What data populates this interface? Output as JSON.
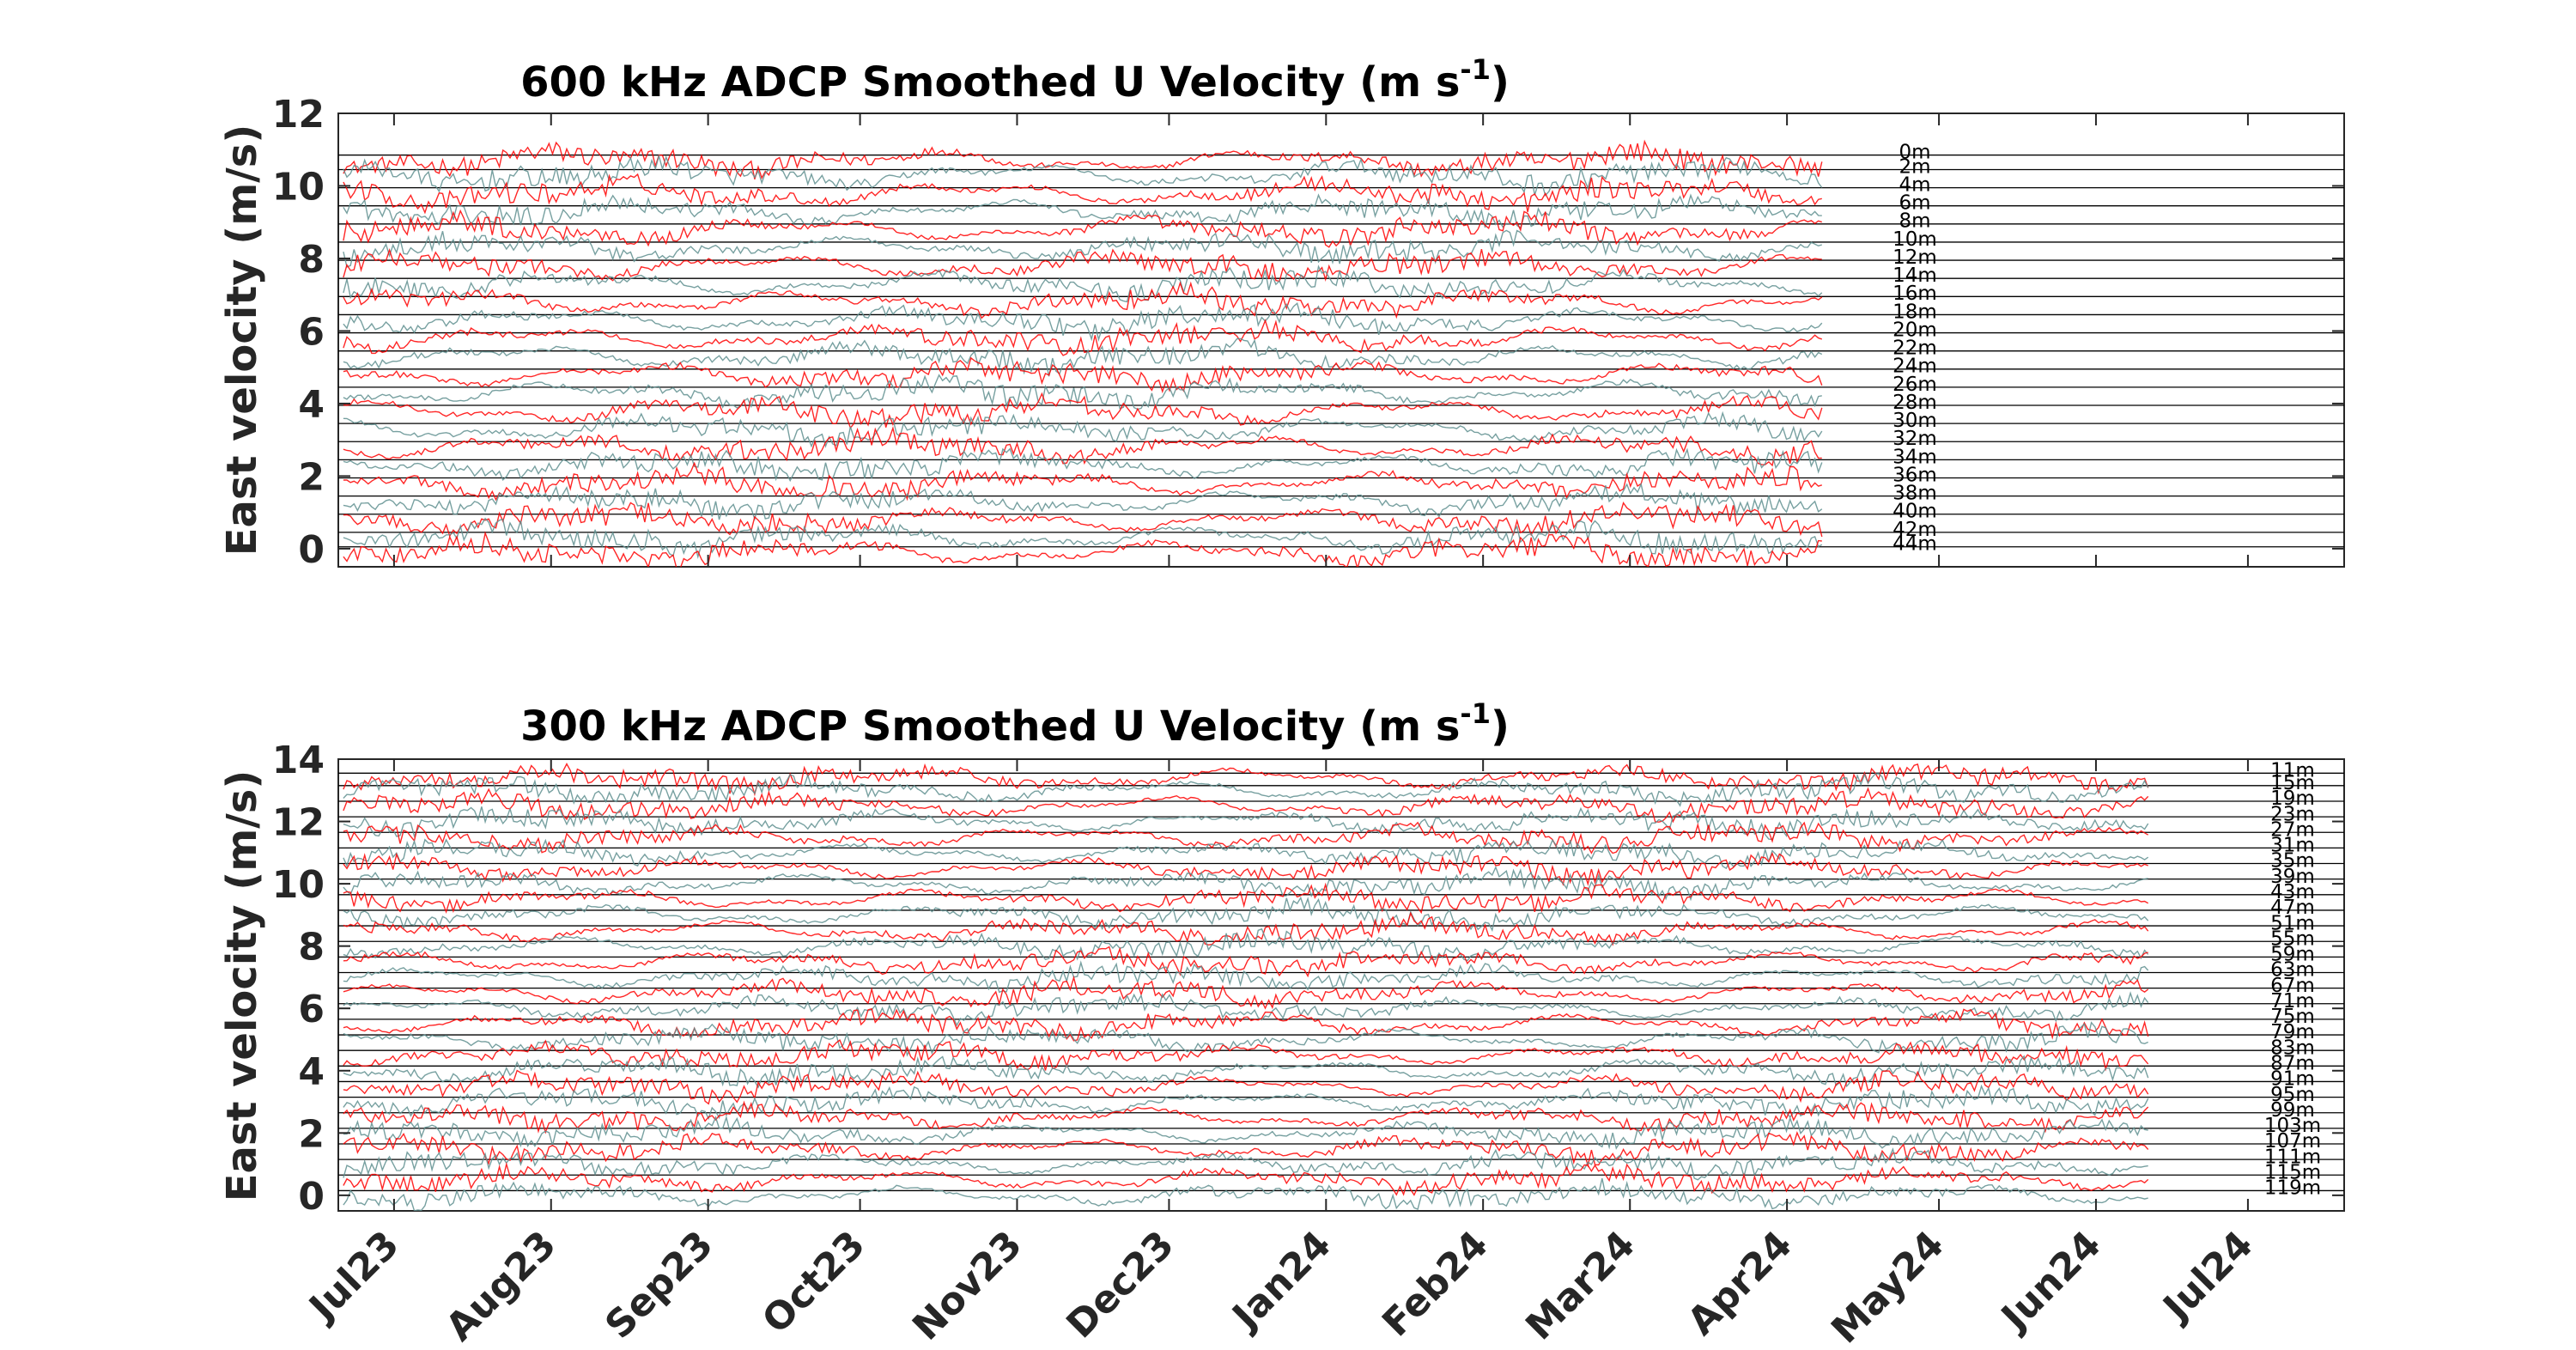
{
  "chart_data": [
    {
      "type": "line",
      "title": "600 kHz ADCP Smoothed U Velocity  (m s",
      "title_sup": "-1",
      "title_close": ")",
      "ylabel": "East velocity (m/s)",
      "xlabel": "",
      "ylim": [
        -0.5,
        12
      ],
      "xlim": [
        "2023-06-20",
        "2024-07-20"
      ],
      "data_span": [
        "2023-06-21",
        "2024-04-08"
      ],
      "yticks": [
        "0",
        "2",
        "4",
        "6",
        "8",
        "10",
        "12"
      ],
      "grid": false,
      "series_colors": [
        "#ff0000",
        "#5f8f8f"
      ],
      "depth_labels": [
        "0m",
        "2m",
        "4m",
        "6m",
        "8m",
        "10m",
        "12m",
        "14m",
        "16m",
        "18m",
        "20m",
        "22m",
        "24m",
        "26m",
        "28m",
        "30m",
        "32m",
        "34m",
        "36m",
        "38m",
        "40m",
        "42m",
        "44m"
      ],
      "depth_label_values": [
        10.9,
        10.5,
        10.0,
        9.5,
        9.0,
        8.5,
        8.0,
        7.5,
        7.0,
        6.5,
        6.0,
        5.5,
        5.0,
        4.5,
        4.0,
        3.5,
        3.0,
        2.5,
        2.0,
        1.5,
        1.0,
        0.5,
        0.1
      ]
    },
    {
      "type": "line",
      "title": "300 kHz ADCP Smoothed U Velocity  (m s",
      "title_sup": "-1",
      "title_close": ")",
      "ylabel": "East velocity (m/s)",
      "xlabel": "",
      "ylim": [
        -0.5,
        14
      ],
      "xlim": [
        "2023-06-20",
        "2024-07-20"
      ],
      "data_span": [
        "2023-06-21",
        "2024-06-12"
      ],
      "yticks": [
        "0",
        "2",
        "4",
        "6",
        "8",
        "10",
        "12",
        "14"
      ],
      "xticks": [
        "Jul23",
        "Aug23",
        "Sep23",
        "Oct23",
        "Nov23",
        "Dec23",
        "Jan24",
        "Feb24",
        "Mar24",
        "Apr24",
        "May24",
        "Jun24",
        "Jul24"
      ],
      "grid": false,
      "series_colors": [
        "#ff0000",
        "#5f8f8f"
      ],
      "depth_labels": [
        "11m",
        "15m",
        "19m",
        "23m",
        "27m",
        "31m",
        "35m",
        "39m",
        "43m",
        "47m",
        "51m",
        "55m",
        "59m",
        "63m",
        "67m",
        "71m",
        "75m",
        "79m",
        "83m",
        "87m",
        "91m",
        "95m",
        "99m",
        "103m",
        "107m",
        "111m",
        "115m",
        "119m"
      ],
      "depth_label_values": [
        13.6,
        13.2,
        12.7,
        12.2,
        11.7,
        11.2,
        10.7,
        10.2,
        9.7,
        9.2,
        8.7,
        8.2,
        7.7,
        7.2,
        6.7,
        6.2,
        5.7,
        5.2,
        4.7,
        4.2,
        3.7,
        3.2,
        2.7,
        2.2,
        1.7,
        1.2,
        0.7,
        0.2
      ]
    }
  ]
}
